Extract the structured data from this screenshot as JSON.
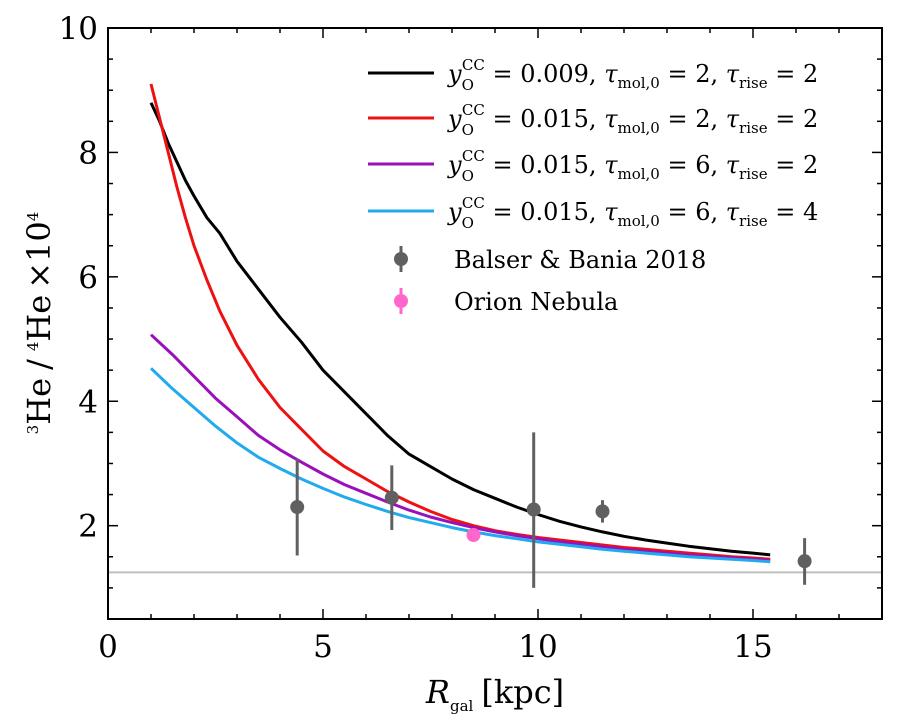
{
  "chart_data": {
    "type": "line",
    "xlabel": {
      "main": "R",
      "sub": "gal",
      "unit": "[kpc]"
    },
    "ylabel": {
      "sup1": "3",
      "el1": "He",
      "sep": "/",
      "sup2": "4",
      "el2": "He",
      "times": "×10",
      "exp": "4"
    },
    "xlim": [
      0,
      18
    ],
    "ylim": [
      0.5,
      10
    ],
    "xticks": [
      0,
      5,
      10,
      15
    ],
    "yticks": [
      2,
      4,
      6,
      8,
      10
    ],
    "grid": false,
    "legend_position": "top-right",
    "reference_line": {
      "y": 1.25,
      "color": "#bfbfbf"
    },
    "series": [
      {
        "kind": "line",
        "color": "#000000",
        "label": {
          "a": "0.009",
          "b": "2",
          "c": "2"
        },
        "x": [
          1.0,
          1.2,
          1.4,
          1.6,
          1.8,
          2.0,
          2.3,
          2.6,
          3.0,
          3.5,
          4.0,
          4.5,
          5.0,
          5.5,
          6.0,
          6.5,
          7.0,
          7.5,
          8.0,
          8.5,
          9.0,
          9.5,
          10.0,
          10.5,
          11.0,
          11.5,
          12.0,
          12.5,
          13.0,
          13.5,
          14.0,
          14.5,
          15.0,
          15.4
        ],
        "y": [
          8.8,
          8.5,
          8.15,
          7.85,
          7.55,
          7.3,
          6.95,
          6.7,
          6.25,
          5.8,
          5.35,
          4.95,
          4.5,
          4.15,
          3.8,
          3.45,
          3.15,
          2.95,
          2.75,
          2.58,
          2.44,
          2.3,
          2.18,
          2.07,
          1.98,
          1.9,
          1.83,
          1.77,
          1.72,
          1.67,
          1.63,
          1.59,
          1.56,
          1.53
        ]
      },
      {
        "kind": "line",
        "color": "#ee1111",
        "label": {
          "a": "0.015",
          "b": "2",
          "c": "2"
        },
        "x": [
          1.0,
          1.2,
          1.4,
          1.6,
          1.8,
          2.0,
          2.3,
          2.6,
          3.0,
          3.5,
          4.0,
          4.5,
          5.0,
          5.5,
          6.0,
          6.5,
          7.0,
          7.5,
          8.0,
          8.5,
          9.0,
          9.5,
          10.0,
          10.5,
          11.0,
          11.5,
          12.0,
          12.5,
          13.0,
          13.5,
          14.0,
          14.5,
          15.0,
          15.4
        ],
        "y": [
          9.1,
          8.55,
          8.0,
          7.45,
          6.95,
          6.5,
          5.95,
          5.45,
          4.9,
          4.35,
          3.9,
          3.55,
          3.2,
          2.95,
          2.75,
          2.55,
          2.38,
          2.23,
          2.1,
          2.0,
          1.92,
          1.86,
          1.81,
          1.77,
          1.73,
          1.69,
          1.65,
          1.62,
          1.59,
          1.56,
          1.53,
          1.5,
          1.48,
          1.46
        ]
      },
      {
        "kind": "line",
        "color": "#9911bb",
        "label": {
          "a": "0.015",
          "b": "6",
          "c": "2"
        },
        "x": [
          1.0,
          1.5,
          2.0,
          2.5,
          3.0,
          3.5,
          4.0,
          4.5,
          5.0,
          5.5,
          6.0,
          6.5,
          7.0,
          7.5,
          8.0,
          8.5,
          9.0,
          9.5,
          10.0,
          10.5,
          11.0,
          11.5,
          12.0,
          12.5,
          13.0,
          13.5,
          14.0,
          14.5,
          15.0,
          15.4
        ],
        "y": [
          5.07,
          4.75,
          4.4,
          4.05,
          3.75,
          3.45,
          3.22,
          3.02,
          2.83,
          2.66,
          2.52,
          2.38,
          2.25,
          2.14,
          2.05,
          1.97,
          1.9,
          1.84,
          1.79,
          1.74,
          1.7,
          1.66,
          1.62,
          1.59,
          1.56,
          1.53,
          1.51,
          1.48,
          1.46,
          1.44
        ]
      },
      {
        "kind": "line",
        "color": "#22aaee",
        "label": {
          "a": "0.015",
          "b": "6",
          "c": "4"
        },
        "x": [
          1.0,
          1.5,
          2.0,
          2.5,
          3.0,
          3.5,
          4.0,
          4.5,
          5.0,
          5.5,
          6.0,
          6.5,
          7.0,
          7.5,
          8.0,
          8.5,
          9.0,
          9.5,
          10.0,
          10.5,
          11.0,
          11.5,
          12.0,
          12.5,
          13.0,
          13.5,
          14.0,
          14.5,
          15.0,
          15.4
        ],
        "y": [
          4.53,
          4.2,
          3.9,
          3.6,
          3.33,
          3.1,
          2.92,
          2.75,
          2.6,
          2.46,
          2.34,
          2.23,
          2.13,
          2.05,
          1.97,
          1.9,
          1.84,
          1.79,
          1.74,
          1.7,
          1.66,
          1.62,
          1.59,
          1.56,
          1.53,
          1.5,
          1.48,
          1.46,
          1.44,
          1.42
        ]
      },
      {
        "kind": "errorbar",
        "color": "#606060",
        "label_text": "Balser & Bania 2018",
        "points": [
          {
            "x": 4.4,
            "y": 2.3,
            "lo": 1.52,
            "hi": 3.07
          },
          {
            "x": 6.6,
            "y": 2.45,
            "lo": 1.93,
            "hi": 2.97
          },
          {
            "x": 9.9,
            "y": 2.26,
            "lo": 1.0,
            "hi": 3.5
          },
          {
            "x": 11.5,
            "y": 2.23,
            "lo": 2.05,
            "hi": 2.41
          },
          {
            "x": 16.2,
            "y": 1.43,
            "lo": 1.05,
            "hi": 1.8
          }
        ]
      },
      {
        "kind": "errorbar",
        "color": "#ff66cc",
        "label_text": "Orion Nebula",
        "points": [
          {
            "x": 8.5,
            "y": 1.85,
            "lo": 1.85,
            "hi": 1.85
          }
        ]
      }
    ],
    "legend_symbols": {
      "y": "y",
      "y_sub": "O",
      "y_sup": "CC",
      "tau": "τ",
      "tau1_sub": "mol,0",
      "tau2_sub": "rise"
    }
  }
}
